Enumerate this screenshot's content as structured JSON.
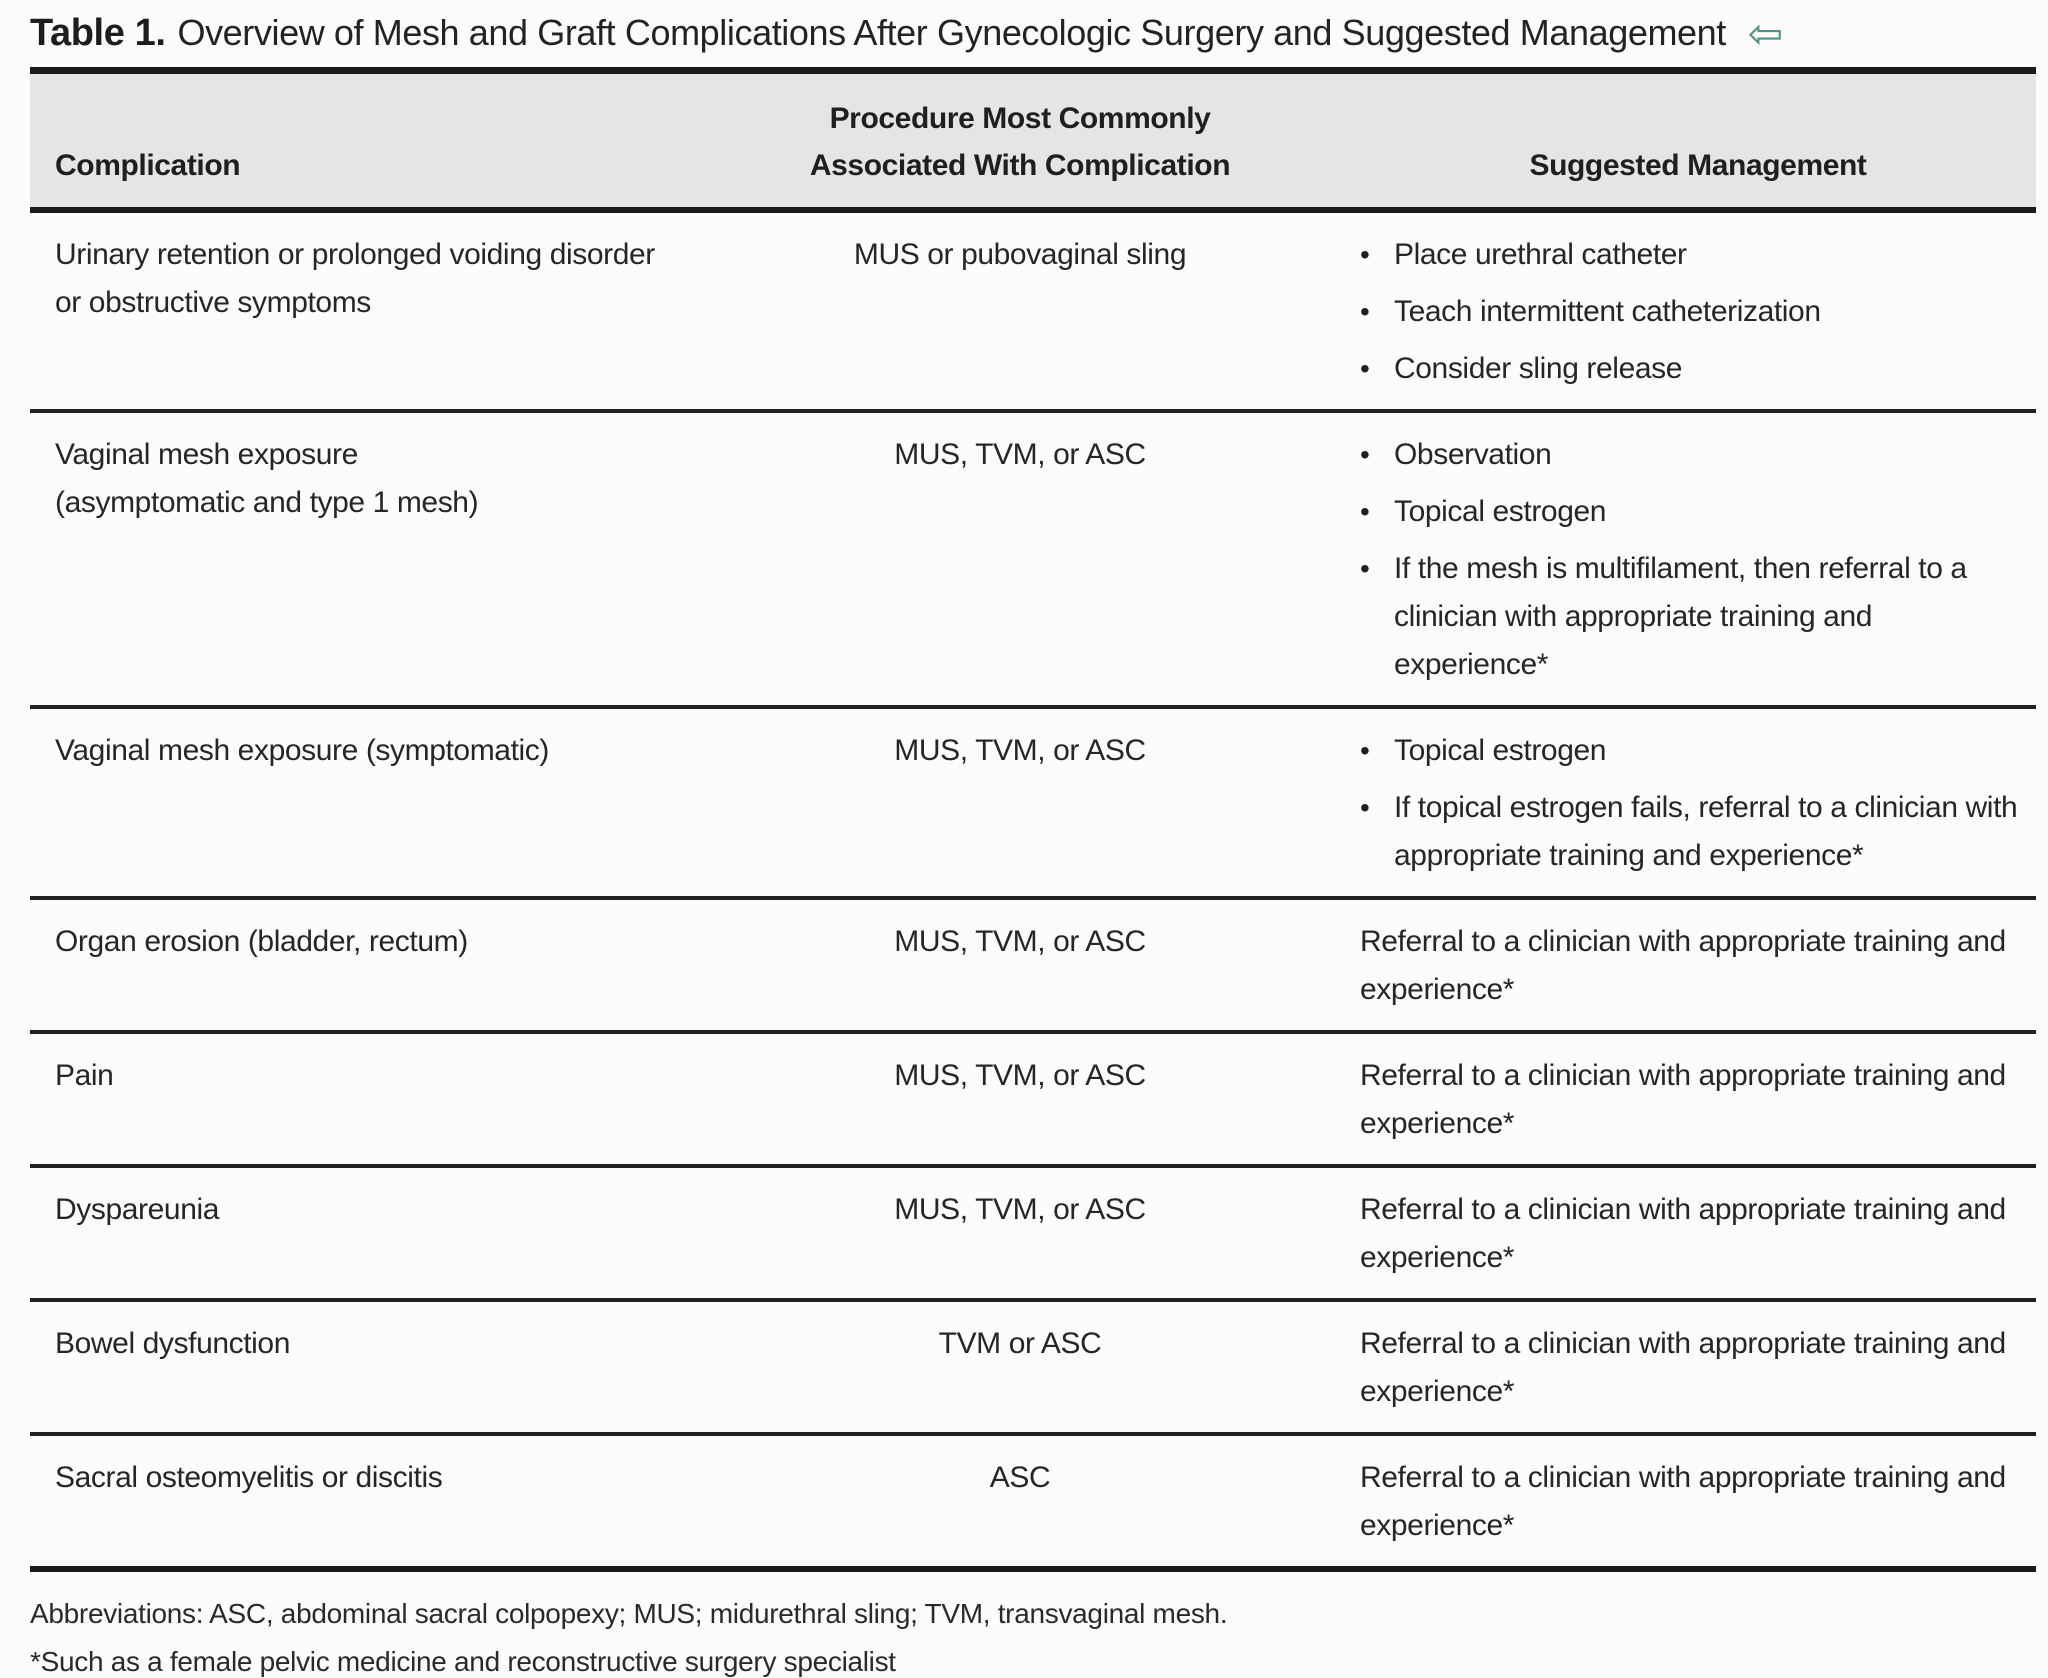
{
  "title": {
    "label": "Table 1.",
    "text": "Overview of Mesh and Graft Complications After Gynecologic Surgery and Suggested Management",
    "back_arrow": "⇦"
  },
  "colors": {
    "header_background": "#e6e5e3",
    "rule": "#1b1b1b",
    "text": "#262626",
    "arrow_accent": "#4b9384"
  },
  "table": {
    "headers": [
      {
        "id": "complication",
        "lines": [
          "Complication"
        ]
      },
      {
        "id": "procedure",
        "lines": [
          "Procedure Most Commonly",
          "Associated With Complication"
        ]
      },
      {
        "id": "management",
        "lines": [
          "Suggested Management"
        ]
      }
    ],
    "rows": [
      {
        "id": "urinary-retention",
        "complication_lines": [
          "Urinary retention or prolonged voiding disorder",
          "or obstructive symptoms"
        ],
        "procedure": "MUS or pubovaginal sling",
        "management": {
          "type": "bullets",
          "items": [
            "Place urethral catheter",
            "Teach intermittent catheterization",
            "Consider sling release"
          ]
        }
      },
      {
        "id": "vaginal-mesh-exposure-asymptomatic",
        "complication_lines": [
          "Vaginal mesh exposure",
          "(asymptomatic and type 1 mesh)"
        ],
        "procedure": "MUS, TVM, or ASC",
        "management": {
          "type": "bullets",
          "items": [
            "Observation",
            "Topical estrogen",
            "If the mesh is multifilament, then referral to a clinician with appropriate training and experience*"
          ]
        }
      },
      {
        "id": "vaginal-mesh-exposure-symptomatic",
        "complication_lines": [
          "Vaginal mesh exposure (symptomatic)"
        ],
        "procedure": "MUS, TVM, or ASC",
        "management": {
          "type": "bullets",
          "items": [
            "Topical estrogen",
            "If topical estrogen fails, referral to a clinician with appropriate training and experience*"
          ]
        }
      },
      {
        "id": "organ-erosion",
        "complication_lines": [
          "Organ erosion (bladder, rectum)"
        ],
        "procedure": "MUS, TVM, or ASC",
        "management": {
          "type": "text",
          "text": "Referral to a clinician with appropriate training and experience*"
        }
      },
      {
        "id": "pain",
        "complication_lines": [
          "Pain"
        ],
        "procedure": "MUS, TVM, or ASC",
        "management": {
          "type": "text",
          "text": "Referral to a clinician with appropriate training and experience*"
        }
      },
      {
        "id": "dyspareunia",
        "complication_lines": [
          "Dyspareunia"
        ],
        "procedure": "MUS, TVM, or ASC",
        "management": {
          "type": "text",
          "text": "Referral to a clinician with appropriate training and experience*"
        }
      },
      {
        "id": "bowel-dysfunction",
        "complication_lines": [
          "Bowel dysfunction"
        ],
        "procedure": "TVM or ASC",
        "management": {
          "type": "text",
          "text": "Referral to a clinician with appropriate training and experience*"
        }
      },
      {
        "id": "sacral-osteomyelitis",
        "complication_lines": [
          "Sacral osteomyelitis or discitis"
        ],
        "procedure": "ASC",
        "management": {
          "type": "text",
          "text": "Referral to a clinician with appropriate training and experience*"
        }
      }
    ]
  },
  "footnotes": {
    "abbreviations": "Abbreviations: ASC, abdominal sacral colpopexy; MUS; midurethral sling; TVM, transvaginal mesh.",
    "asterisk": "*Such as a female pelvic medicine and reconstructive surgery specialist"
  }
}
